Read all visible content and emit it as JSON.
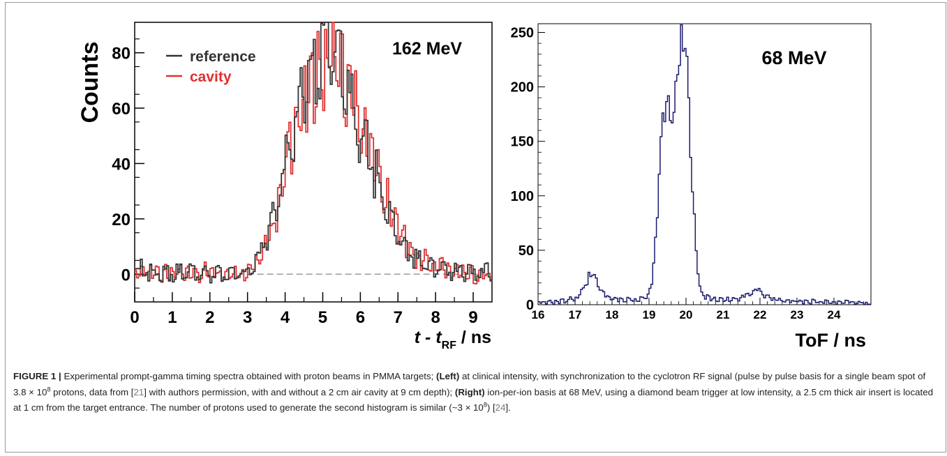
{
  "figure_label": "FIGURE 1 |",
  "caption": {
    "p1": "Experimental prompt-gamma timing spectra obtained with proton beams in PMMA targets; ",
    "left_tag": "(Left)",
    "p2": " at clinical intensity, with synchronization to the cyclotron RF signal (pulse by pulse basis for a single beam spot of 3.8 × 10",
    "sup1": "8",
    "p3": " protons, data from [",
    "ref1": "21",
    "p4": "] with authors permission, with and without a 2 cm air cavity at 9 cm depth); ",
    "right_tag": "(Right)",
    "p5": " ion-per-ion basis at 68 MeV, using a diamond beam trigger at low intensity, a 2.5 cm thick air insert is located at 1 cm from the target entrance. The number of protons used to generate the second histogram is similar (~3 × 10",
    "sup2": "8",
    "p6": ") [",
    "ref2": "24",
    "p7": "]."
  },
  "chart_data": [
    {
      "type": "line",
      "annotation": "162 MeV",
      "ylabel": "Counts",
      "xlabel_parts": [
        "t - t",
        "RF",
        " / ns"
      ],
      "xlim": [
        0,
        9.5
      ],
      "ylim": [
        -10,
        91
      ],
      "xticks": [
        0,
        1,
        2,
        3,
        4,
        5,
        6,
        7,
        8,
        9
      ],
      "yticks": [
        0,
        20,
        40,
        60,
        80
      ],
      "legend": "top-left",
      "baseline": 0,
      "series": [
        {
          "name": "reference",
          "color": "#333333",
          "x": [
            0.0,
            0.5,
            1.0,
            1.5,
            2.0,
            2.5,
            3.0,
            3.25,
            3.5,
            3.75,
            4.0,
            4.25,
            4.5,
            4.75,
            5.0,
            5.25,
            5.5,
            5.75,
            6.0,
            6.25,
            6.5,
            6.75,
            7.0,
            7.5,
            8.0,
            8.5,
            9.0,
            9.5
          ],
          "values": [
            2,
            1,
            0,
            1,
            0,
            0,
            1,
            5,
            12,
            22,
            38,
            55,
            66,
            74,
            83,
            80,
            72,
            62,
            52,
            42,
            33,
            23,
            14,
            5,
            2,
            1,
            0,
            1
          ]
        },
        {
          "name": "cavity",
          "color": "#e03030",
          "x": [
            0.0,
            0.5,
            1.0,
            1.5,
            2.0,
            2.5,
            3.0,
            3.25,
            3.5,
            3.75,
            4.0,
            4.25,
            4.5,
            4.75,
            5.0,
            5.25,
            5.5,
            5.75,
            6.0,
            6.25,
            6.5,
            6.75,
            7.0,
            7.5,
            8.0,
            8.5,
            9.0,
            9.5
          ],
          "values": [
            1,
            0,
            1,
            0,
            1,
            0,
            0,
            4,
            10,
            20,
            36,
            53,
            63,
            70,
            74,
            77,
            72,
            64,
            55,
            46,
            36,
            26,
            16,
            6,
            3,
            1,
            0,
            0
          ]
        }
      ]
    },
    {
      "type": "line",
      "annotation": "68 MeV",
      "xlabel": "ToF / ns",
      "xlim": [
        16,
        25
      ],
      "ylim": [
        0,
        258
      ],
      "xticks": [
        16,
        17,
        18,
        19,
        20,
        21,
        22,
        23,
        24
      ],
      "yticks": [
        0,
        50,
        100,
        150,
        200,
        250
      ],
      "series": [
        {
          "name": "",
          "color": "#1a1a6e",
          "x": [
            16.0,
            16.5,
            17.0,
            17.2,
            17.35,
            17.45,
            17.55,
            17.7,
            17.9,
            18.3,
            18.7,
            19.0,
            19.1,
            19.2,
            19.3,
            19.4,
            19.5,
            19.6,
            19.7,
            19.8,
            19.9,
            20.0,
            20.1,
            20.2,
            20.3,
            20.4,
            20.6,
            21.0,
            21.5,
            21.8,
            21.9,
            22.1,
            22.5,
            23.0,
            23.5,
            24.0,
            24.5,
            25.0
          ],
          "values": [
            3,
            2,
            6,
            12,
            24,
            32,
            24,
            12,
            6,
            4,
            5,
            8,
            25,
            70,
            140,
            182,
            185,
            170,
            178,
            232,
            248,
            242,
            160,
            90,
            35,
            10,
            6,
            4,
            6,
            11,
            14,
            9,
            4,
            3,
            3,
            2,
            2,
            2
          ]
        }
      ]
    }
  ]
}
